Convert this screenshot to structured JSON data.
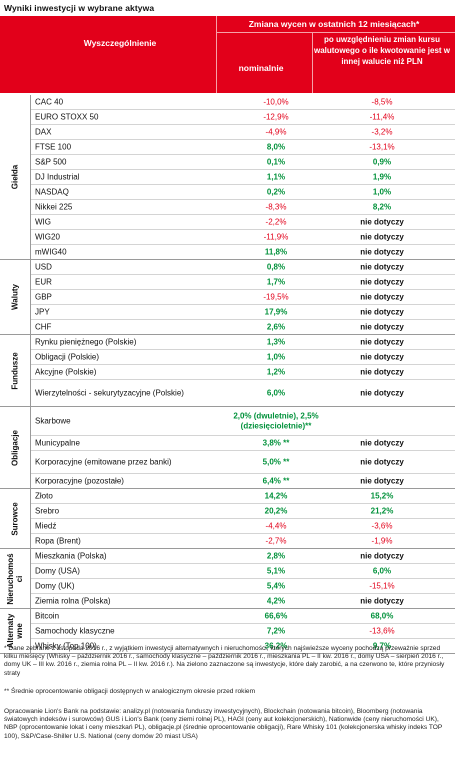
{
  "title": "Wyniki inwestycji w wybrane aktywa",
  "header": {
    "col_label": "Wyszczególnienie",
    "change_label": "Zmiana wycen w ostatnich 12 miesiącach*",
    "nominal_label": "nominalnie",
    "fx_label": "po uwzględnieniu zmian kursu walutowego o ile kwotowanie jest w innej walucie niż PLN"
  },
  "groups": [
    {
      "label": "Giełda",
      "rows": [
        {
          "name": "CAC 40",
          "nominal": "-10,0%",
          "fx": "-8,5%"
        },
        {
          "name": "EURO STOXX 50",
          "nominal": "-12,9%",
          "fx": "-11,4%"
        },
        {
          "name": "DAX",
          "nominal": "-4,9%",
          "fx": "-3,2%"
        },
        {
          "name": "FTSE 100",
          "nominal": "8,0%",
          "fx": "-13,1%"
        },
        {
          "name": "S&P 500",
          "nominal": "0,1%",
          "fx": "0,9%"
        },
        {
          "name": "DJ Industrial",
          "nominal": "1,1%",
          "fx": "1,9%"
        },
        {
          "name": "NASDAQ",
          "nominal": "0,2%",
          "fx": "1,0%"
        },
        {
          "name": "Nikkei 225",
          "nominal": "-8,3%",
          "fx": "8,2%"
        },
        {
          "name": "WIG",
          "nominal": "-2,2%",
          "fx": "nie dotyczy"
        },
        {
          "name": "WIG20",
          "nominal": "-11,9%",
          "fx": "nie dotyczy"
        },
        {
          "name": "mWIG40",
          "nominal": "11,8%",
          "fx": "nie dotyczy"
        }
      ]
    },
    {
      "label": "Waluty",
      "rows": [
        {
          "name": "USD",
          "nominal": "0,8%",
          "fx": "nie dotyczy"
        },
        {
          "name": "EUR",
          "nominal": "1,7%",
          "fx": "nie dotyczy"
        },
        {
          "name": "GBP",
          "nominal": "-19,5%",
          "fx": "nie dotyczy"
        },
        {
          "name": "JPY",
          "nominal": "17,9%",
          "fx": "nie dotyczy"
        },
        {
          "name": "CHF",
          "nominal": "2,6%",
          "fx": "nie dotyczy"
        }
      ]
    },
    {
      "label": "Fundusze",
      "rows": [
        {
          "name": "Rynku pieniężnego (Polskie)",
          "nominal": "1,3%",
          "fx": "nie dotyczy"
        },
        {
          "name": "Obligacji (Polskie)",
          "nominal": "1,0%",
          "fx": "nie dotyczy"
        },
        {
          "name": "Akcyjne (Polskie)",
          "nominal": "1,2%",
          "fx": "nie dotyczy"
        },
        {
          "name": "Wierzytelności - sekurytyzacyjne (Polskie)",
          "nominal": "6,0%",
          "fx": "nie dotyczy"
        }
      ]
    },
    {
      "label": "Obligacje",
      "rows": [
        {
          "name": "Skarbowe",
          "nominal": "2,0% (dwuletnie), 2,5% (dziesięcioletnie)**",
          "fx": ""
        },
        {
          "name": "Municypalne",
          "nominal": "3,8% **",
          "fx": "nie dotyczy"
        },
        {
          "name": "Korporacyjne (emitowane przez banki)",
          "nominal": "5,0% **",
          "fx": "nie dotyczy"
        },
        {
          "name": "Korporacyjne (pozostałe)",
          "nominal": "6,4% **",
          "fx": "nie dotyczy"
        }
      ]
    },
    {
      "label": "Surowce",
      "rows": [
        {
          "name": "Złoto",
          "nominal": "14,2%",
          "fx": "15,2%"
        },
        {
          "name": "Srebro",
          "nominal": "20,2%",
          "fx": "21,2%"
        },
        {
          "name": "Miedź",
          "nominal": "-4,4%",
          "fx": "-3,6%"
        },
        {
          "name": "Ropa (Brent)",
          "nominal": "-2,7%",
          "fx": "-1,9%"
        }
      ]
    },
    {
      "label": "Nieruchomości",
      "rows": [
        {
          "name": "Mieszkania (Polska)",
          "nominal": "2,8%",
          "fx": "nie dotyczy"
        },
        {
          "name": "Domy (USA)",
          "nominal": "5,1%",
          "fx": "6,0%"
        },
        {
          "name": "Domy (UK)",
          "nominal": "5,4%",
          "fx": "-15,1%"
        },
        {
          "name": "Ziemia rolna (Polska)",
          "nominal": "4,2%",
          "fx": "nie dotyczy"
        }
      ]
    },
    {
      "label": "Alternatywne",
      "rows": [
        {
          "name": "Bitcoin",
          "nominal": "66,6%",
          "fx": "68,0%"
        },
        {
          "name": "Samochody klasyczne",
          "nominal": "7,2%",
          "fx": "-13,6%"
        },
        {
          "name": "Whisky (Top 100)",
          "nominal": "36,2%",
          "fx": "9,7%"
        }
      ]
    }
  ],
  "notes": {
    "n1": "* Dane zebrane 2 listopada 2016 r., z wyjątkiem inwestycji alternatywnych i nieruchomości, których najświeższe wyceny pochodzą przeważnie sprzed kilku miesięcy (Whisky – październik 2016 r., samochody klasyczne – październik 2016 r., mieszkania PL – II kw. 2016 r., domy USA – sierpień 2016 r., domy UK – III kw. 2016 r., ziemia rolna PL – II kw. 2016 r.). Na zielono zaznaczone są inwestycje, które dały zarobić, a na czerwono te, które przyniosły straty",
    "n2": "** Średnie oprocentowanie obligacji dostępnych w analogicznym okresie przed rokiem",
    "n3": "Opracowanie Lion's Bank na podstawie: analizy.pl (notowania funduszy inwestycyjnych), Blockchain (notowania bitcoin), Bloomberg (notowania światowych indeksów i surowców) GUS i Lion's Bank (ceny ziemi rolnej PL), HAGI (ceny aut kolekcjonerskich), Nationwide (ceny nieruchomości UK), NBP (oprocentowanie lokat i ceny mieszkań PL), obligacje.pl (średnie oprocentowanie obligacji), Rare Whisky 101 (kolekcjonerska whisky indeks TOP 100), S&P/Case-Shiller U.S. National (ceny domów 20 miast USA)"
  },
  "colors": {
    "header_red": "#e2001a",
    "positive_green": "#00913a",
    "negative_red": "#e2001a"
  }
}
